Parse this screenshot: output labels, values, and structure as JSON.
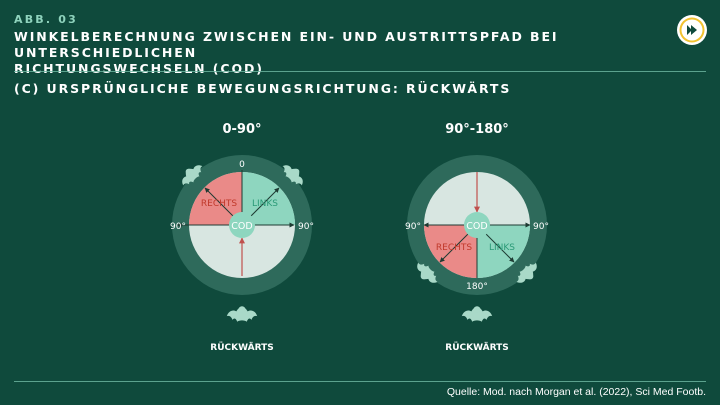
{
  "header": {
    "figure_number": "ABB. 03",
    "title_line1": "WINKELBERECHNUNG ZWISCHEN EIN- UND AUSTRITTSPFAD BEI UNTERSCHIEDLICHEN",
    "title_line2": "RICHTUNGSWECHSELN (COD)",
    "subtitle": "(C) URSPRÜNGLICHE BEWEGUNGSRICHTUNG: RÜCKWÄRTS"
  },
  "colors": {
    "background": "#0f4a3c",
    "ring": "#2e6a5b",
    "disc": "#d8e6e1",
    "rechts": "#ea8a88",
    "links": "#8ed6bf",
    "accent_text": "#8fd3bd"
  },
  "panels": [
    {
      "range_label": "0-90°",
      "center_label": "COD",
      "top_label": "0",
      "left_label": "90°",
      "right_label": "90°",
      "rechts_label": "RECHTS",
      "links_label": "LINKS",
      "direction_label": "RÜCKWÄRTS"
    },
    {
      "range_label": "90°-180°",
      "center_label": "COD",
      "bottom_label": "180°",
      "left_label": "90°",
      "right_label": "90°",
      "rechts_label": "RECHTS",
      "links_label": "LINKS",
      "direction_label": "RÜCKWÄRTS"
    }
  ],
  "footer": {
    "source": "Quelle: Mod. nach Morgan et al. (2022), Sci Med Footb."
  },
  "icons": [
    "dfb-logo-icon",
    "player-icon"
  ]
}
